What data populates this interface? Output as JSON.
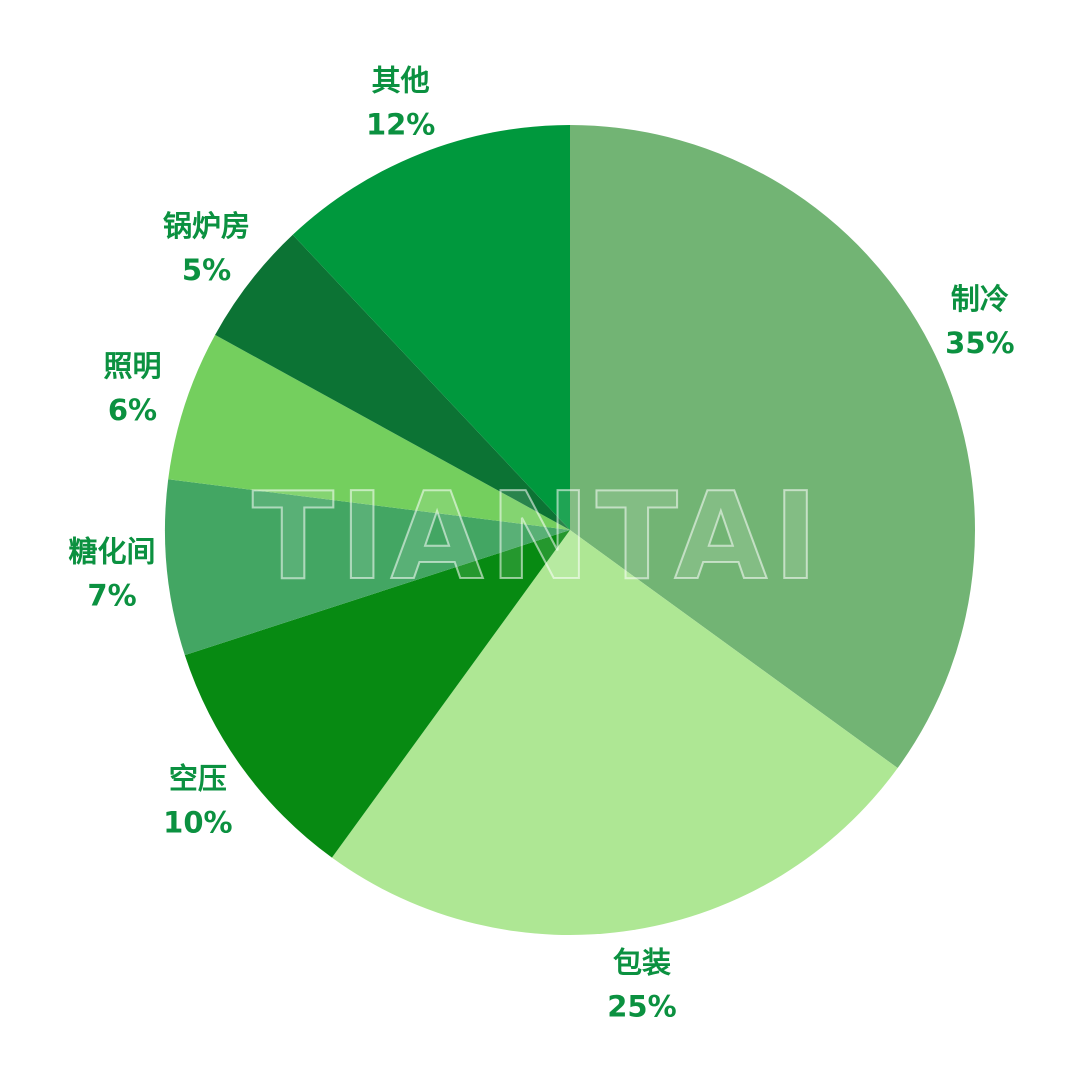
{
  "chart_data": {
    "type": "pie",
    "start": "top",
    "direction": "clockwise",
    "categories": [
      "制冷",
      "包装",
      "空压",
      "糖化间",
      "照明",
      "锅炉房",
      "其他"
    ],
    "values": [
      35,
      25,
      10,
      7,
      6,
      5,
      12
    ],
    "labels": [
      "35%",
      "25%",
      "10%",
      "7%",
      "6%",
      "5%",
      "12%"
    ],
    "colors": [
      "#72b474",
      "#aee794",
      "#078a12",
      "#43a663",
      "#74cf5e",
      "#0c7334",
      "#00983d"
    ],
    "label_color": "#0b9140",
    "legend": "none"
  },
  "watermark": "TIANTAI"
}
